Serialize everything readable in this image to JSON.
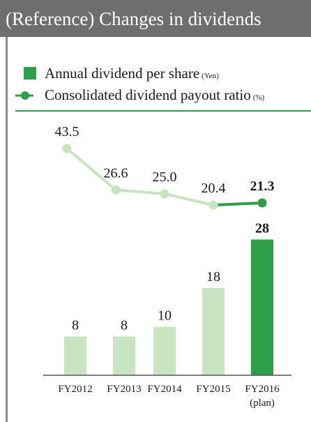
{
  "title": "(Reference) Changes in dividends",
  "colors": {
    "header_bg": "#6e6e6e",
    "accent": "#2e9e48",
    "bar_past": "#c9e4c0",
    "line_past": "#c9e4c0",
    "axis": "#555555"
  },
  "legend": [
    {
      "label": "Annual dividend per share",
      "unit": "(Yen)",
      "marker": "square"
    },
    {
      "label": "Consolidated dividend payout ratio",
      "unit": "(%)",
      "marker": "line-dot"
    }
  ],
  "chart_data": {
    "type": "bar+line",
    "categories": [
      "FY2012",
      "FY2013",
      "FY2014",
      "FY2015",
      "FY2016"
    ],
    "category_sublabels": [
      "",
      "",
      "",
      "",
      "(plan)"
    ],
    "bars": {
      "name": "Annual dividend per share",
      "unit": "Yen",
      "values": [
        8,
        8,
        10,
        18,
        28
      ],
      "labels": [
        "8",
        "8",
        "10",
        "18",
        "28"
      ],
      "highlight_index": 4
    },
    "line": {
      "name": "Consolidated dividend payout ratio",
      "unit": "%",
      "values": [
        43.5,
        26.6,
        25.0,
        20.4,
        21.3
      ],
      "labels": [
        "43.5",
        "26.6",
        "25.0",
        "20.4",
        "21.3"
      ],
      "highlight_from_index": 3
    },
    "grid": false,
    "legend_position": "top-left"
  }
}
